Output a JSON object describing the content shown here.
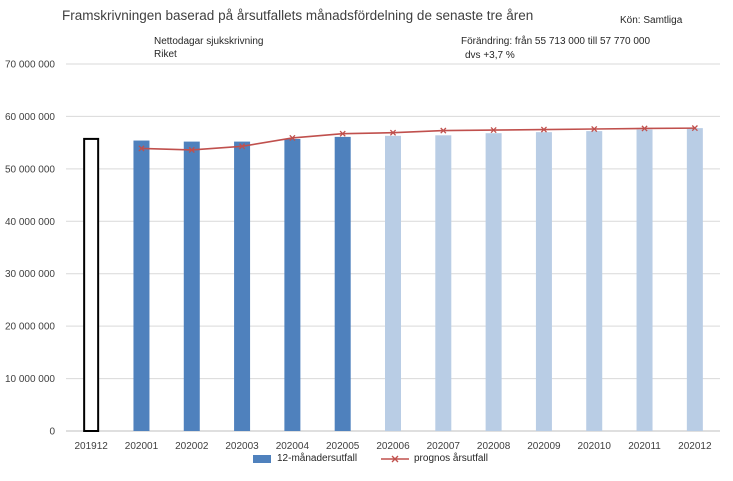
{
  "chart_data": {
    "type": "bar",
    "title": "Framskrivningen baserad på årsutfallets månadsfördelning de senaste tre åren",
    "subtitle_lines": [
      "Nettodagar sjukskrivning",
      "Riket"
    ],
    "gender_label": "Kön: Samtliga",
    "change_lines": [
      "Förändring: från 55 713 000 till 57 770 000",
      "dvs +3,7 %"
    ],
    "categories": [
      "201912",
      "202001",
      "202002",
      "202003",
      "202004",
      "202005",
      "202006",
      "202007",
      "202008",
      "202009",
      "202010",
      "202011",
      "202012"
    ],
    "ylim": [
      0,
      70000000
    ],
    "yticks": [
      0,
      10000000,
      20000000,
      30000000,
      40000000,
      50000000,
      60000000,
      70000000
    ],
    "ytick_labels": [
      "0",
      "10 000 000",
      "20 000 000",
      "30 000 000",
      "40 000 000",
      "50 000 000",
      "60 000 000",
      "70 000 000"
    ],
    "series": [
      {
        "name": "12-månadersutfall",
        "kind": "bar",
        "values": [
          55713000,
          55400000,
          55200000,
          55200000,
          55700000,
          56100000,
          56300000,
          56400000,
          56800000,
          57000000,
          57200000,
          57500000,
          57770000
        ],
        "styles": [
          "outline",
          "actual",
          "actual",
          "actual",
          "actual",
          "actual",
          "forecast",
          "forecast",
          "forecast",
          "forecast",
          "forecast",
          "forecast",
          "forecast"
        ]
      },
      {
        "name": "prognos årsutfall",
        "kind": "line",
        "values": [
          null,
          53900000,
          53600000,
          54300000,
          55900000,
          56700000,
          56900000,
          57300000,
          57400000,
          57500000,
          57600000,
          57700000,
          57770000
        ]
      }
    ],
    "colors": {
      "actual": "#4f81bd",
      "forecast": "#b9cde5",
      "outline": "#000000",
      "line": "#c0504d",
      "grid": "#d9d9d9",
      "axis": "#bfbfbf"
    }
  }
}
